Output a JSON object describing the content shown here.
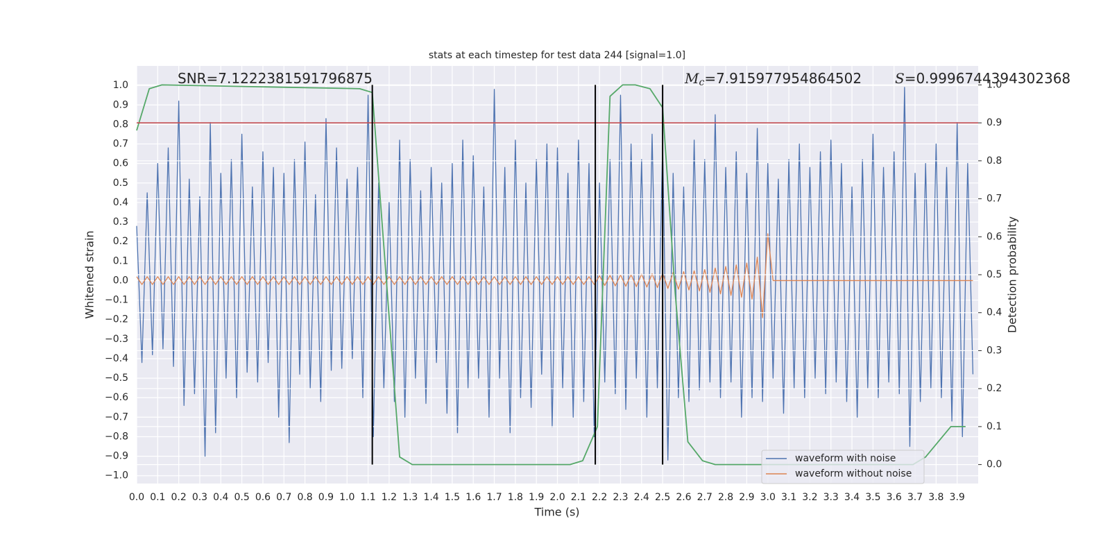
{
  "chart_data": {
    "type": "line",
    "title": "stats at each timestep for test data 244 [signal=1.0]",
    "xlabel": "Time (s)",
    "ylabel": "Whitened strain",
    "y2label": "Detection probability",
    "annotations": [
      {
        "text": "SNR=7.1222381591796875"
      },
      {
        "symbol": "M",
        "subscript": "c",
        "text": "=7.915977954864502"
      },
      {
        "symbol": "S",
        "text": "=0.9996744394302368"
      }
    ],
    "xlim": [
      0,
      4.0
    ],
    "ylim": [
      -1.04,
      1.1
    ],
    "y2lim": [
      -0.05,
      1.05
    ],
    "grid": true,
    "legend": "lower right",
    "xticks": [
      {
        "value": 0,
        "label": "0.0"
      },
      {
        "value": 0.1,
        "label": "0.1"
      },
      {
        "value": 0.2,
        "label": "0.2"
      },
      {
        "value": 0.3,
        "label": "0.3"
      },
      {
        "value": 0.4,
        "label": "0.4"
      },
      {
        "value": 0.5,
        "label": "0.5"
      },
      {
        "value": 0.6,
        "label": "0.6"
      },
      {
        "value": 0.7,
        "label": "0.7"
      },
      {
        "value": 0.8,
        "label": "0.8"
      },
      {
        "value": 0.9,
        "label": "0.9"
      },
      {
        "value": 1.0,
        "label": "1.0"
      },
      {
        "value": 1.1,
        "label": "1.1"
      },
      {
        "value": 1.2,
        "label": "1.2"
      },
      {
        "value": 1.3,
        "label": "1.3"
      },
      {
        "value": 1.4,
        "label": "1.4"
      },
      {
        "value": 1.5,
        "label": "1.5"
      },
      {
        "value": 1.6,
        "label": "1.6"
      },
      {
        "value": 1.7,
        "label": "1.7"
      },
      {
        "value": 1.8,
        "label": "1.8"
      },
      {
        "value": 1.9,
        "label": "1.9"
      },
      {
        "value": 2.0,
        "label": "2.0"
      },
      {
        "value": 2.1,
        "label": "2.1"
      },
      {
        "value": 2.2,
        "label": "2.2"
      },
      {
        "value": 2.3,
        "label": "2.3"
      },
      {
        "value": 2.4,
        "label": "2.4"
      },
      {
        "value": 2.5,
        "label": "2.5"
      },
      {
        "value": 2.6,
        "label": "2.6"
      },
      {
        "value": 2.7,
        "label": "2.7"
      },
      {
        "value": 2.8,
        "label": "2.8"
      },
      {
        "value": 2.9,
        "label": "2.9"
      },
      {
        "value": 3.0,
        "label": "3.0"
      },
      {
        "value": 3.1,
        "label": "3.1"
      },
      {
        "value": 3.2,
        "label": "3.2"
      },
      {
        "value": 3.3,
        "label": "3.3"
      },
      {
        "value": 3.4,
        "label": "3.4"
      },
      {
        "value": 3.5,
        "label": "3.5"
      },
      {
        "value": 3.6,
        "label": "3.6"
      },
      {
        "value": 3.7,
        "label": "3.7"
      },
      {
        "value": 3.8,
        "label": "3.8"
      },
      {
        "value": 3.9,
        "label": "3.9"
      }
    ],
    "yticks": [
      {
        "value": -1.0,
        "label": "−1.0"
      },
      {
        "value": -0.9,
        "label": "−0.9"
      },
      {
        "value": -0.8,
        "label": "−0.8"
      },
      {
        "value": -0.7,
        "label": "−0.7"
      },
      {
        "value": -0.6,
        "label": "−0.6"
      },
      {
        "value": -0.5,
        "label": "−0.5"
      },
      {
        "value": -0.4,
        "label": "−0.4"
      },
      {
        "value": -0.3,
        "label": "−0.3"
      },
      {
        "value": -0.2,
        "label": "−0.2"
      },
      {
        "value": -0.1,
        "label": "−0.1"
      },
      {
        "value": 0,
        "label": "0.0"
      },
      {
        "value": 0.1,
        "label": "0.1"
      },
      {
        "value": 0.2,
        "label": "0.2"
      },
      {
        "value": 0.3,
        "label": "0.3"
      },
      {
        "value": 0.4,
        "label": "0.4"
      },
      {
        "value": 0.5,
        "label": "0.5"
      },
      {
        "value": 0.6,
        "label": "0.6"
      },
      {
        "value": 0.7,
        "label": "0.7"
      },
      {
        "value": 0.8,
        "label": "0.8"
      },
      {
        "value": 0.9,
        "label": "0.9"
      },
      {
        "value": 1.0,
        "label": "1.0"
      }
    ],
    "y2ticks": [
      {
        "value": 0,
        "label": "0.0"
      },
      {
        "value": 0.1,
        "label": "0.1"
      },
      {
        "value": 0.2,
        "label": "0.2"
      },
      {
        "value": 0.3,
        "label": "0.3"
      },
      {
        "value": 0.4,
        "label": "0.4"
      },
      {
        "value": 0.5,
        "label": "0.5"
      },
      {
        "value": 0.6,
        "label": "0.6"
      },
      {
        "value": 0.7,
        "label": "0.7"
      },
      {
        "value": 0.8,
        "label": "0.8"
      },
      {
        "value": 0.9,
        "label": "0.9"
      },
      {
        "value": 1.0,
        "label": "1.0"
      }
    ],
    "x": [
      0,
      0.025,
      0.05,
      0.075,
      0.1,
      0.125,
      0.15,
      0.175,
      0.2,
      0.225,
      0.25,
      0.275,
      0.3,
      0.325,
      0.35,
      0.375,
      0.4,
      0.425,
      0.45,
      0.475,
      0.5,
      0.525,
      0.55,
      0.575,
      0.6,
      0.625,
      0.65,
      0.675,
      0.7,
      0.725,
      0.75,
      0.775,
      0.8,
      0.825,
      0.85,
      0.875,
      0.9,
      0.925,
      0.95,
      0.975,
      1.0,
      1.025,
      1.05,
      1.075,
      1.1,
      1.125,
      1.15,
      1.175,
      1.2,
      1.225,
      1.25,
      1.275,
      1.3,
      1.325,
      1.35,
      1.375,
      1.4,
      1.425,
      1.45,
      1.475,
      1.5,
      1.525,
      1.55,
      1.575,
      1.6,
      1.625,
      1.65,
      1.675,
      1.7,
      1.725,
      1.75,
      1.775,
      1.8,
      1.825,
      1.85,
      1.875,
      1.9,
      1.925,
      1.95,
      1.975,
      2.0,
      2.025,
      2.05,
      2.075,
      2.1,
      2.125,
      2.15,
      2.175,
      2.2,
      2.225,
      2.25,
      2.275,
      2.3,
      2.325,
      2.35,
      2.375,
      2.4,
      2.425,
      2.45,
      2.475,
      2.5,
      2.525,
      2.55,
      2.575,
      2.6,
      2.625,
      2.65,
      2.675,
      2.7,
      2.725,
      2.75,
      2.775,
      2.8,
      2.825,
      2.85,
      2.875,
      2.9,
      2.925,
      2.95,
      2.975,
      3.0,
      3.025,
      3.05,
      3.075,
      3.1,
      3.125,
      3.15,
      3.175,
      3.2,
      3.225,
      3.25,
      3.275,
      3.3,
      3.325,
      3.35,
      3.375,
      3.4,
      3.425,
      3.45,
      3.475,
      3.5,
      3.525,
      3.55,
      3.575,
      3.6,
      3.625,
      3.65,
      3.675,
      3.7,
      3.725,
      3.75,
      3.775,
      3.8,
      3.825,
      3.85,
      3.875,
      3.9,
      3.925,
      3.95,
      3.975
    ],
    "series": [
      {
        "name": "waveform with noise",
        "color": "#4c72b0",
        "values": [
          0.28,
          -0.42,
          0.45,
          -0.38,
          0.6,
          -0.35,
          0.68,
          -0.44,
          0.92,
          -0.64,
          0.52,
          -0.58,
          0.43,
          -0.9,
          0.81,
          -0.78,
          0.55,
          -0.5,
          0.62,
          -0.6,
          0.75,
          -0.47,
          0.48,
          -0.52,
          0.66,
          -0.42,
          0.58,
          -0.7,
          0.55,
          -0.83,
          0.62,
          -0.48,
          0.71,
          -0.55,
          0.44,
          -0.62,
          0.83,
          -0.46,
          0.68,
          -0.45,
          0.52,
          -0.4,
          0.58,
          -0.6,
          0.95,
          -0.8,
          0.5,
          -0.55,
          0.4,
          -0.62,
          0.72,
          -0.7,
          0.62,
          -0.5,
          0.46,
          -0.63,
          0.58,
          -0.42,
          0.5,
          -0.68,
          0.6,
          -0.78,
          0.72,
          -0.55,
          0.64,
          -0.5,
          0.48,
          -0.7,
          0.98,
          -0.5,
          0.58,
          -0.78,
          0.72,
          -0.6,
          0.5,
          -0.65,
          0.62,
          -0.48,
          0.7,
          -0.75,
          0.68,
          -0.55,
          0.55,
          -0.7,
          0.72,
          -0.62,
          0.6,
          -0.8,
          0.5,
          -0.52,
          0.62,
          -0.58,
          0.95,
          -0.66,
          0.7,
          -0.5,
          0.62,
          -0.7,
          0.75,
          -0.55,
          0.7,
          -0.92,
          0.55,
          -0.6,
          0.48,
          -0.62,
          0.72,
          -0.56,
          0.62,
          -0.52,
          0.85,
          -0.6,
          0.58,
          -0.52,
          0.66,
          -0.7,
          0.55,
          -0.6,
          0.78,
          -0.62,
          0.6,
          -0.5,
          0.52,
          -0.68,
          0.62,
          -0.55,
          0.7,
          -0.6,
          0.58,
          -0.5,
          0.66,
          -0.58,
          0.72,
          -0.52,
          0.6,
          -0.62,
          0.48,
          -0.7,
          0.62,
          -0.55,
          0.75,
          -0.6,
          0.58,
          -0.52,
          0.66,
          -0.58,
          0.99,
          -0.85,
          0.55,
          -0.62,
          0.6,
          -0.55,
          0.7,
          -0.6,
          0.58,
          -0.72,
          0.81,
          -0.8,
          0.6,
          -0.48
        ]
      },
      {
        "name": "waveform without noise",
        "color": "#dd8452",
        "values": [
          0.02,
          -0.02,
          0.02,
          -0.02,
          0.02,
          -0.02,
          0.02,
          -0.02,
          0.02,
          -0.02,
          0.02,
          -0.02,
          0.02,
          -0.02,
          0.02,
          -0.02,
          0.02,
          -0.02,
          0.02,
          -0.02,
          0.02,
          -0.02,
          0.02,
          -0.02,
          0.02,
          -0.02,
          0.02,
          -0.02,
          0.02,
          -0.02,
          0.02,
          -0.02,
          0.02,
          -0.02,
          0.02,
          -0.02,
          0.02,
          -0.02,
          0.02,
          -0.02,
          0.02,
          -0.02,
          0.02,
          -0.02,
          0.02,
          -0.02,
          0.02,
          -0.02,
          0.02,
          -0.02,
          0.02,
          -0.02,
          0.02,
          -0.02,
          0.02,
          -0.02,
          0.02,
          -0.02,
          0.02,
          -0.02,
          0.02,
          -0.02,
          0.02,
          -0.02,
          0.02,
          -0.02,
          0.02,
          -0.02,
          0.02,
          -0.02,
          0.02,
          -0.02,
          0.02,
          -0.02,
          0.02,
          -0.02,
          0.02,
          -0.02,
          0.02,
          -0.02,
          0.02,
          -0.02,
          0.02,
          -0.02,
          0.02,
          -0.02,
          0.02,
          -0.02,
          0.025,
          -0.025,
          0.027,
          -0.027,
          0.029,
          -0.029,
          0.031,
          -0.031,
          0.033,
          -0.033,
          0.035,
          -0.036,
          0.038,
          -0.04,
          0.042,
          -0.044,
          0.046,
          -0.048,
          0.05,
          -0.053,
          0.056,
          -0.06,
          0.064,
          -0.068,
          0.072,
          -0.076,
          0.08,
          -0.085,
          0.09,
          -0.095,
          0.12,
          -0.19,
          0.24,
          0,
          0,
          0,
          0,
          0,
          0,
          0,
          0,
          0,
          0,
          0,
          0,
          0,
          0,
          0,
          0,
          0,
          0,
          0,
          0,
          0,
          0,
          0,
          0,
          0,
          0,
          0,
          0,
          0,
          0,
          0,
          0,
          0,
          0,
          0,
          0,
          0,
          0,
          0
        ]
      },
      {
        "color": "#55a868",
        "axis": "y2",
        "x": [
          0,
          0.06,
          0.12,
          1.06,
          1.12,
          1.25,
          1.31,
          2.06,
          2.12,
          2.19,
          2.25,
          2.31,
          2.37,
          2.44,
          2.5,
          2.56,
          2.62,
          2.69,
          2.75,
          3.69,
          3.75,
          3.81,
          3.87,
          3.94
        ],
        "values": [
          0.88,
          0.99,
          1.0,
          0.99,
          0.98,
          0.02,
          0.0,
          0.0,
          0.01,
          0.1,
          0.97,
          1.0,
          1.0,
          0.99,
          0.94,
          0.45,
          0.06,
          0.01,
          0.0,
          0.0,
          0.02,
          0.06,
          0.1,
          0.1
        ]
      }
    ],
    "threshold": {
      "value": 0.9,
      "axis": "y2",
      "color": "#c44e52"
    },
    "vlines": [
      1.12,
      2.18,
      2.5
    ],
    "vline_range": [
      0,
      1.0
    ],
    "vline_color": "#000000"
  }
}
